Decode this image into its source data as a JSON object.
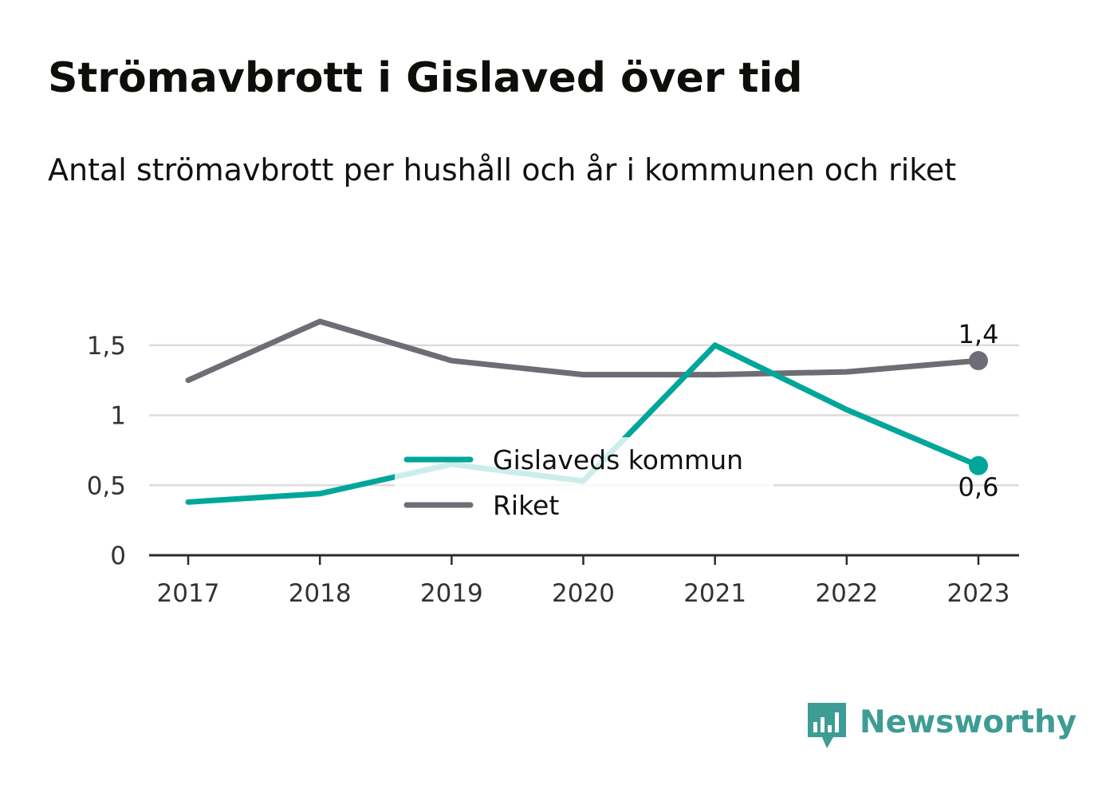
{
  "chart_data": {
    "type": "line",
    "title": "Strömavbrott i Gislaved över tid",
    "subtitle": "Antal strömavbrott per hushåll och år i kommunen och riket",
    "x": [
      "2017",
      "2018",
      "2019",
      "2020",
      "2021",
      "2022",
      "2023"
    ],
    "y_ticks": [
      0,
      0.5,
      1,
      1.5
    ],
    "y_tick_labels": [
      "0",
      "0,5",
      "1",
      "1,5"
    ],
    "ylim": [
      0,
      1.72
    ],
    "grid": true,
    "legend_position": "center",
    "series": [
      {
        "name": "Gislaveds kommun",
        "values": [
          0.38,
          0.44,
          0.65,
          0.53,
          1.5,
          1.04,
          0.64
        ],
        "color": "#00a69a",
        "end_label": "0,6"
      },
      {
        "name": "Riket",
        "values": [
          1.25,
          1.67,
          1.39,
          1.29,
          1.29,
          1.31,
          1.39
        ],
        "color": "#6e6d75",
        "end_label": "1,4"
      }
    ]
  },
  "brand": {
    "name": "Newsworthy",
    "logo_icon": "newsworthy-bar-chart-icon",
    "color": "#3d9c94"
  }
}
